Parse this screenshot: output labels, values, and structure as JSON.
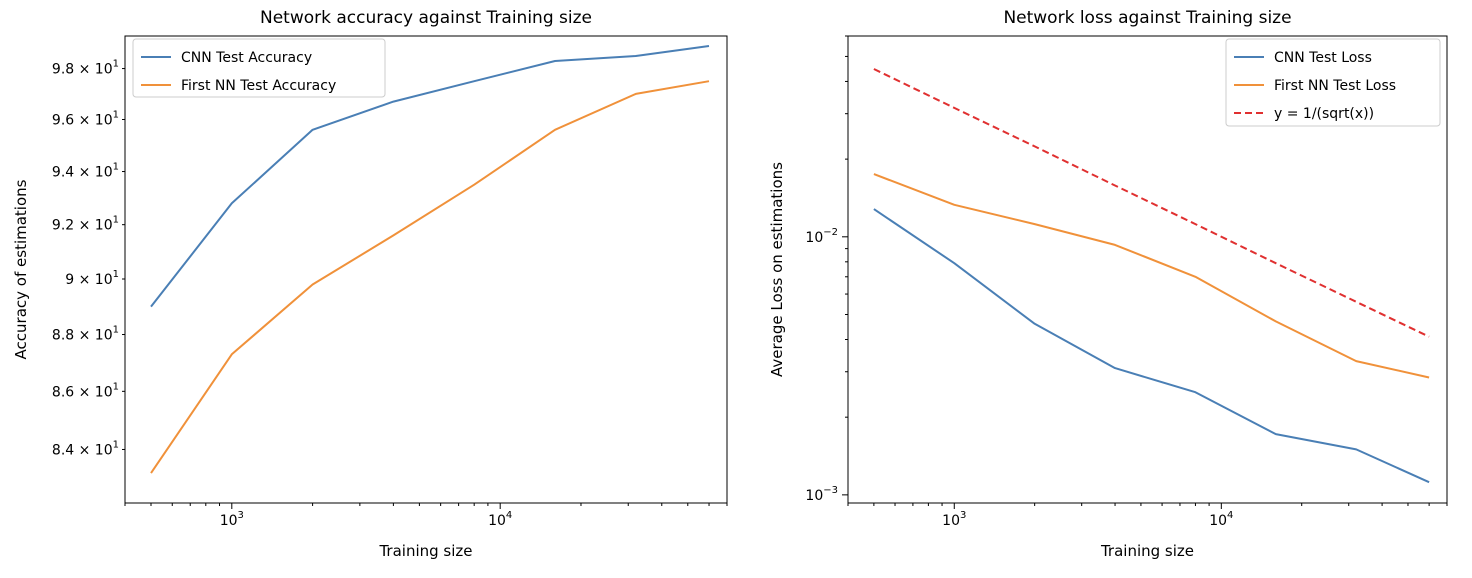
{
  "chart_data": [
    {
      "type": "line",
      "title": "Network accuracy against Training size",
      "xlabel": "Training size",
      "ylabel": "Accuracy of estimations",
      "xscale": "log",
      "yscale": "log",
      "xlim": [
        400,
        70000
      ],
      "ylim": [
        82.2,
        99.3
      ],
      "x": [
        500,
        1000,
        2000,
        4000,
        8000,
        16000,
        32000,
        60000
      ],
      "x_ticks": [
        {
          "value": 1000,
          "base": "10",
          "exp": "3"
        },
        {
          "value": 10000,
          "base": "10",
          "exp": "4"
        }
      ],
      "y_ticks": [
        {
          "value": 84,
          "mant": "8.4",
          "exp": "1"
        },
        {
          "value": 86,
          "mant": "8.6",
          "exp": "1"
        },
        {
          "value": 88,
          "mant": "8.8",
          "exp": "1"
        },
        {
          "value": 90,
          "mant": "9",
          "exp": "1"
        },
        {
          "value": 92,
          "mant": "9.2",
          "exp": "1"
        },
        {
          "value": 94,
          "mant": "9.4",
          "exp": "1"
        },
        {
          "value": 96,
          "mant": "9.6",
          "exp": "1"
        },
        {
          "value": 98,
          "mant": "9.8",
          "exp": "1"
        }
      ],
      "legend_position": "upper-left",
      "series": [
        {
          "name": "CNN Test Accuracy",
          "color": "#4a7fb5",
          "dash": "solid",
          "values": [
            89.0,
            92.8,
            95.6,
            96.7,
            97.5,
            98.3,
            98.5,
            98.9
          ]
        },
        {
          "name": "First NN Test Accuracy",
          "color": "#f0913a",
          "dash": "solid",
          "values": [
            83.2,
            87.3,
            89.8,
            91.6,
            93.5,
            95.6,
            97.0,
            97.5
          ]
        }
      ]
    },
    {
      "type": "line",
      "title": "Network loss against Training size",
      "xlabel": "Training size",
      "ylabel": "Average Loss on estimations",
      "xscale": "log",
      "yscale": "log",
      "xlim": [
        400,
        70000
      ],
      "ylim": [
        0.00093,
        0.06
      ],
      "x": [
        500,
        1000,
        2000,
        4000,
        8000,
        16000,
        32000,
        60000
      ],
      "x_ticks": [
        {
          "value": 1000,
          "base": "10",
          "exp": "3"
        },
        {
          "value": 10000,
          "base": "10",
          "exp": "4"
        }
      ],
      "y_ticks": [
        {
          "value": 0.01,
          "mant": "10",
          "exp": "−2"
        },
        {
          "value": 0.001,
          "mant": "10",
          "exp": "−3"
        }
      ],
      "legend_position": "upper-right",
      "series": [
        {
          "name": "CNN Test Loss",
          "color": "#4a7fb5",
          "dash": "solid",
          "values": [
            0.0128,
            0.0079,
            0.0046,
            0.0031,
            0.0025,
            0.00172,
            0.0015,
            0.00112
          ]
        },
        {
          "name": "First NN Test Loss",
          "color": "#f0913a",
          "dash": "solid",
          "values": [
            0.0175,
            0.0133,
            0.0112,
            0.0093,
            0.007,
            0.0047,
            0.0033,
            0.00285
          ]
        },
        {
          "name": "y = 1/(sqrt(x))",
          "color": "#e03030",
          "dash": "dashed",
          "values": [
            0.0447,
            0.0316,
            0.0224,
            0.0158,
            0.0112,
            0.0079,
            0.0056,
            0.0041
          ]
        }
      ]
    }
  ]
}
